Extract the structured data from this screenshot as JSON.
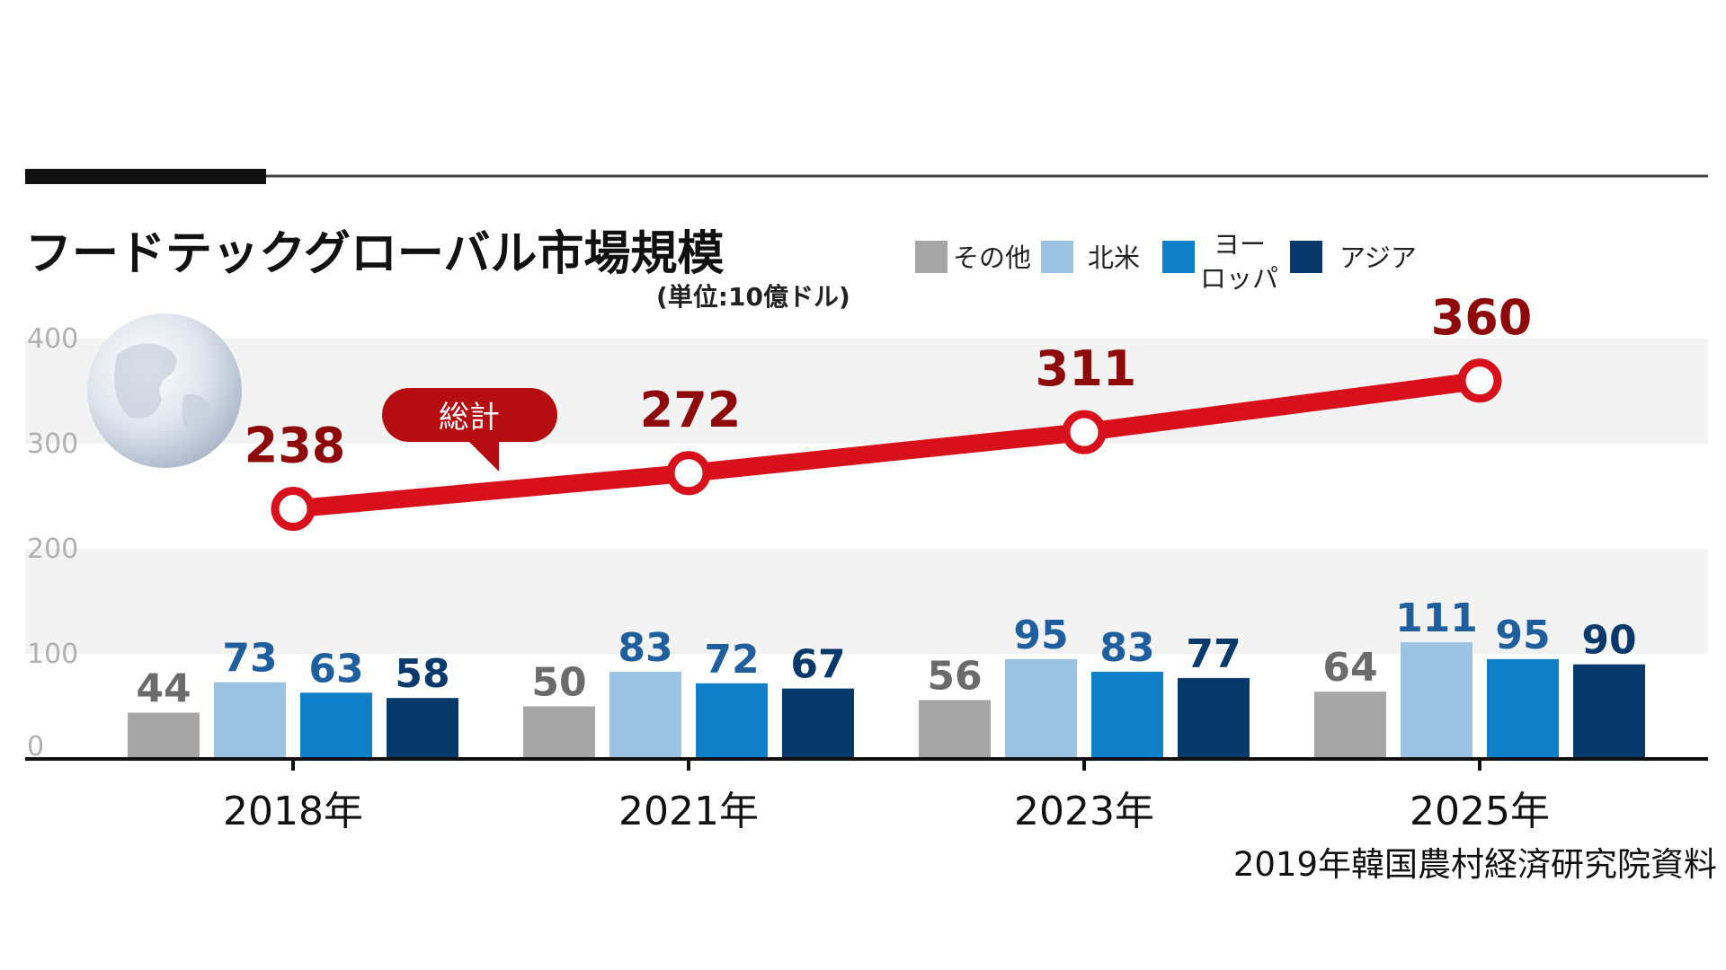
{
  "chart_data": {
    "type": "bar",
    "title": "フードテックグローバル市場規模",
    "unit": "(単位:10億ドル)",
    "categories": [
      "2018年",
      "2021年",
      "2023年",
      "2025年"
    ],
    "ylim": [
      0,
      400
    ],
    "yticks": [
      0,
      100,
      200,
      300,
      400
    ],
    "grid_bands": true,
    "legend_position": "top-right",
    "series": [
      {
        "name": "その他",
        "color": "#a6a6a6",
        "label_color": "#6b6b6b",
        "values": [
          44,
          50,
          56,
          64
        ]
      },
      {
        "name": "北米",
        "color": "#9cc3e2",
        "label_color": "#1f5f9e",
        "values": [
          73,
          83,
          95,
          111
        ]
      },
      {
        "name": "ヨーロッパ",
        "color": "#0f7fc9",
        "label_color": "#1f5f9e",
        "values": [
          63,
          72,
          83,
          95
        ]
      },
      {
        "name": "アジア",
        "color": "#073a6b",
        "label_color": "#073a6b",
        "values": [
          58,
          67,
          77,
          90
        ]
      }
    ],
    "total": {
      "name": "総計",
      "type": "line",
      "color": "#d7101b",
      "values": [
        238,
        272,
        311,
        360
      ]
    },
    "source": "2019年韓国農村経済研究院資料"
  }
}
